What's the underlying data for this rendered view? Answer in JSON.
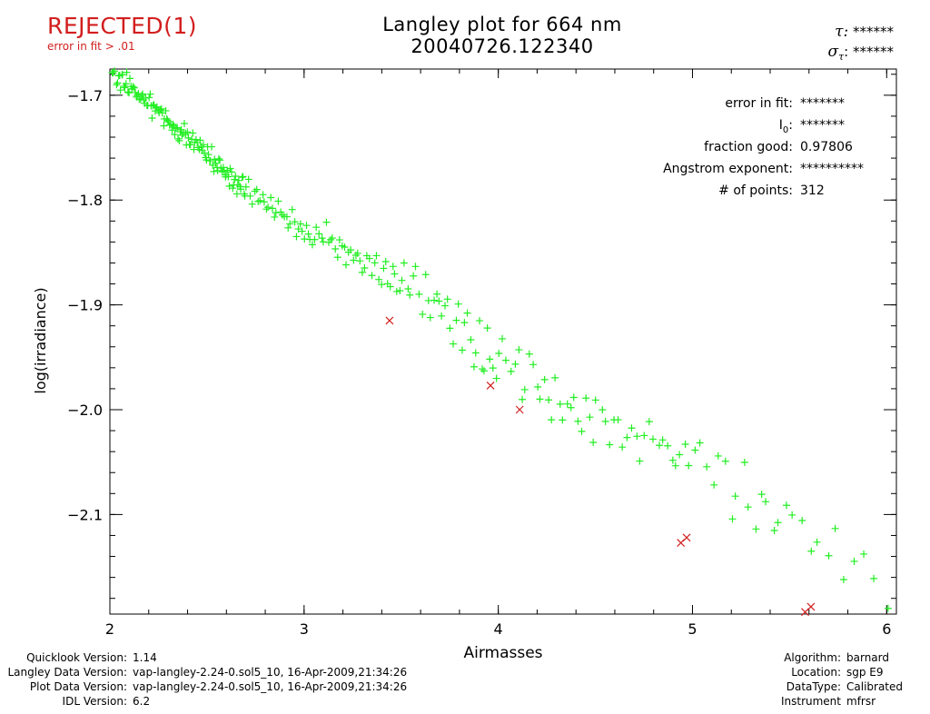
{
  "status": {
    "label": "REJECTED(1)",
    "reason": "error in fit > .01",
    "color": "#d21e1e"
  },
  "title": {
    "line1": "Langley plot for 664 nm",
    "line2": "20040726.122340"
  },
  "tau": {
    "tau_label": "τ:",
    "tau_value": "******",
    "sigma_label": "σ",
    "sigma_sub": "τ",
    "sigma_value": "******"
  },
  "stats": [
    {
      "label": "error in fit:",
      "value": "*******"
    },
    {
      "label": "I",
      "sub": "0",
      "label_tail": ":",
      "value": "*******"
    },
    {
      "label": "fraction good:",
      "value": "0.97806"
    },
    {
      "label": "Angstrom exponent:",
      "value": "**********"
    },
    {
      "label": "# of points:",
      "value": " 312"
    }
  ],
  "chart_data": {
    "type": "scatter",
    "xlabel": "Airmasses",
    "ylabel": "log(irradiance)",
    "xlim": [
      2.0,
      6.05
    ],
    "ylim": [
      -2.195,
      -1.675
    ],
    "x_ticks": [
      2,
      3,
      4,
      5,
      6
    ],
    "x_tick_labels": [
      "2",
      "3",
      "4",
      "5",
      "6"
    ],
    "y_ticks": [
      -1.7,
      -1.8,
      -1.9,
      -2.0,
      -2.1
    ],
    "y_tick_labels": [
      "−1.7",
      "−1.8",
      "−1.9",
      "−2.0",
      "−2.1"
    ],
    "good_color": "#22ee22",
    "rejected_color": "#d21e1e",
    "good_marker": "plus",
    "rejected_marker": "cross",
    "rejected_points": [
      {
        "x": 3.44,
        "y": -1.915
      },
      {
        "x": 3.96,
        "y": -1.977
      },
      {
        "x": 4.11,
        "y": -2.0
      },
      {
        "x": 4.94,
        "y": -2.127
      },
      {
        "x": 4.97,
        "y": -2.122
      },
      {
        "x": 5.58,
        "y": -2.193
      },
      {
        "x": 5.61,
        "y": -2.188
      }
    ],
    "good_segments": [
      {
        "x0": 2.0,
        "x1": 2.7,
        "y0": -1.675,
        "y1": -1.79,
        "n": 130,
        "amp": 0.012
      },
      {
        "x0": 2.7,
        "x1": 3.05,
        "y0": -1.79,
        "y1": -1.835,
        "n": 34,
        "amp": 0.012
      },
      {
        "x0": 3.05,
        "x1": 3.5,
        "y0": -1.83,
        "y1": -1.88,
        "n": 38,
        "amp": 0.018
      },
      {
        "x0": 3.5,
        "x1": 4.0,
        "y0": -1.87,
        "y1": -1.955,
        "n": 34,
        "amp": 0.028
      },
      {
        "x0": 4.0,
        "x1": 4.5,
        "y0": -1.945,
        "y1": -2.02,
        "n": 26,
        "amp": 0.032
      },
      {
        "x0": 4.5,
        "x1": 5.0,
        "y0": -2.0,
        "y1": -2.05,
        "n": 22,
        "amp": 0.032
      },
      {
        "x0": 5.0,
        "x1": 5.5,
        "y0": -2.05,
        "y1": -2.11,
        "n": 16,
        "amp": 0.035
      },
      {
        "x0": 5.5,
        "x1": 6.05,
        "y0": -2.1,
        "y1": -2.18,
        "n": 12,
        "amp": 0.04
      }
    ]
  },
  "footer_left": [
    {
      "label": "Quicklook Version:",
      "value": "1.14"
    },
    {
      "label": "Langley Data Version:",
      "value": "vap-langley-2.24-0.sol5_10, 16-Apr-2009,21:34:26"
    },
    {
      "label": "Plot Data Version:",
      "value": "vap-langley-2.24-0.sol5_10, 16-Apr-2009,21:34:26"
    },
    {
      "label": "IDL Version:",
      "value": "6.2"
    }
  ],
  "footer_right": [
    {
      "label": "Algorithm:",
      "value": "barnard"
    },
    {
      "label": "Location:",
      "value": "sgp E9"
    },
    {
      "label": "DataType:",
      "value": "Calibrated"
    },
    {
      "label": "Instrument",
      "value": "mfrsr"
    }
  ]
}
